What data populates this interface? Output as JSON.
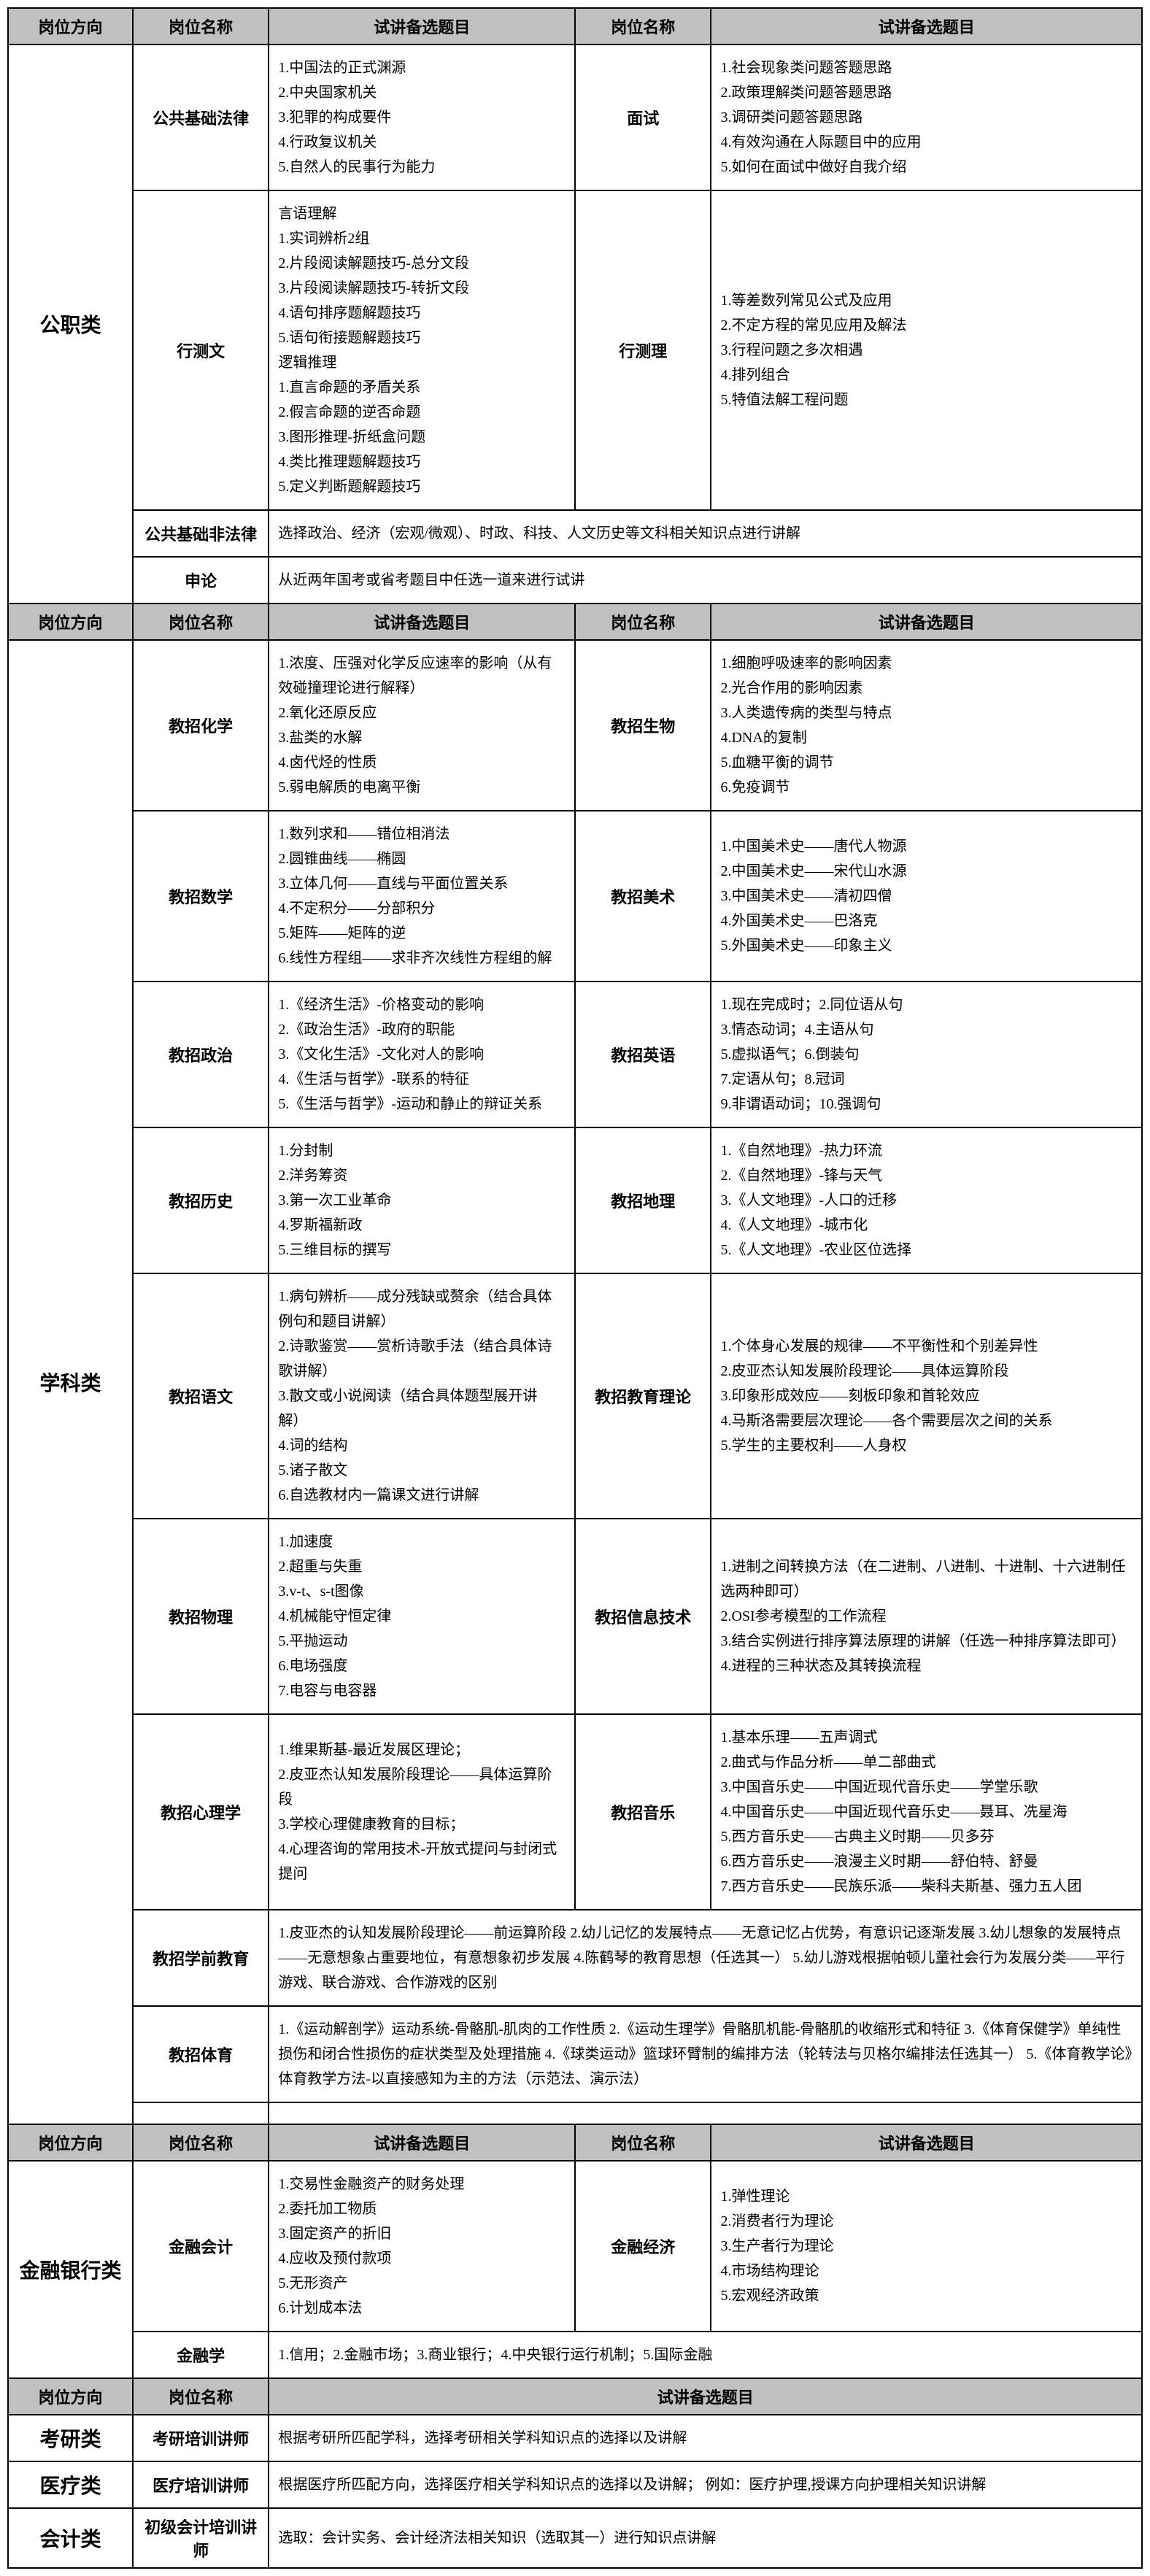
{
  "headers": {
    "direction": "岗位方向",
    "name": "岗位名称",
    "topics": "试讲备选题目"
  },
  "sections": {
    "gongzhi": {
      "direction": "公职类",
      "rows": [
        {
          "name1": "公共基础法律",
          "topics1": "1.中国法的正式渊源\n2.中央国家机关\n3.犯罪的构成要件\n4.行政复议机关\n5.自然人的民事行为能力",
          "name2": "面试",
          "topics2": "1.社会现象类问题答题思路\n2.政策理解类问题答题思路\n3.调研类问题答题思路\n4.有效沟通在人际题目中的应用\n5.如何在面试中做好自我介绍"
        },
        {
          "name1": "行测文",
          "topics1": "言语理解\n1.实词辨析2组\n2.片段阅读解题技巧-总分文段\n3.片段阅读解题技巧-转折文段\n4.语句排序题解题技巧\n5.语句衔接题解题技巧\n逻辑推理\n1.直言命题的矛盾关系\n2.假言命题的逆否命题\n3.图形推理-折纸盒问题\n4.类比推理题解题技巧\n5.定义判断题解题技巧",
          "name2": "行测理",
          "topics2": "1.等差数列常见公式及应用\n2.不定方程的常见应用及解法\n3.行程问题之多次相遇\n4.排列组合\n5.特值法解工程问题"
        },
        {
          "name1": "公共基础非法律",
          "topics_wide": "选择政治、经济（宏观/微观）、时政、科技、人文历史等文科相关知识点进行讲解"
        },
        {
          "name1": "申论",
          "topics_wide": "从近两年国考或省考题目中任选一道来进行试讲"
        }
      ]
    },
    "xueke": {
      "direction": "学科类",
      "rows": [
        {
          "name1": "教招化学",
          "topics1": "1.浓度、压强对化学反应速率的影响（从有效碰撞理论进行解释）\n2.氧化还原反应\n3.盐类的水解\n4.卤代烃的性质\n5.弱电解质的电离平衡",
          "name2": "教招生物",
          "topics2": "1.细胞呼吸速率的影响因素\n2.光合作用的影响因素\n3.人类遗传病的类型与特点\n4.DNA的复制\n5.血糖平衡的调节\n6.免疫调节"
        },
        {
          "name1": "教招数学",
          "topics1": "1.数列求和——错位相消法\n2.圆锥曲线——椭圆\n3.立体几何——直线与平面位置关系\n4.不定积分——分部积分\n5.矩阵——矩阵的逆\n6.线性方程组——求非齐次线性方程组的解",
          "name2": "教招美术",
          "topics2": "1.中国美术史——唐代人物源\n2.中国美术史——宋代山水源\n3.中国美术史——清初四僧\n4.外国美术史——巴洛克\n5.外国美术史——印象主义"
        },
        {
          "name1": "教招政治",
          "topics1": "1.《经济生活》-价格变动的影响\n2.《政治生活》-政府的职能\n3.《文化生活》-文化对人的影响\n4.《生活与哲学》-联系的特征\n5.《生活与哲学》-运动和静止的辩证关系",
          "name2": "教招英语",
          "topics2": "1.现在完成时；2.同位语从句\n3.情态动词；4.主语从句\n5.虚拟语气；6.倒装句\n7.定语从句；8.冠词\n9.非谓语动词；10.强调句"
        },
        {
          "name1": "教招历史",
          "topics1": "1.分封制\n2.洋务筹资\n3.第一次工业革命\n4.罗斯福新政\n5.三维目标的撰写",
          "name2": "教招地理",
          "topics2": "1.《自然地理》-热力环流\n2.《自然地理》-锋与天气\n3.《人文地理》-人口的迁移\n4.《人文地理》-城市化\n5.《人文地理》-农业区位选择"
        },
        {
          "name1": "教招语文",
          "topics1": "1.病句辨析——成分残缺或赘余（结合具体例句和题目讲解）\n2.诗歌鉴赏——赏析诗歌手法（结合具体诗歌讲解）\n3.散文或小说阅读（结合具体题型展开讲解）\n4.词的结构\n5.诸子散文\n6.自选教材内一篇课文进行讲解",
          "name2": "教招教育理论",
          "topics2": "1.个体身心发展的规律——不平衡性和个别差异性\n2.皮亚杰认知发展阶段理论——具体运算阶段\n3.印象形成效应——刻板印象和首轮效应\n4.马斯洛需要层次理论——各个需要层次之间的关系\n5.学生的主要权利——人身权"
        },
        {
          "name1": "教招物理",
          "topics1": "1.加速度\n2.超重与失重\n3.v-t、s-t图像\n4.机械能守恒定律\n5.平抛运动\n6.电场强度\n7.电容与电容器",
          "name2": "教招信息技术",
          "topics2": "1.进制之间转换方法（在二进制、八进制、十进制、十六进制任选两种即可）\n2.OSI参考模型的工作流程\n3.结合实例进行排序算法原理的讲解（任选一种排序算法即可）\n4.进程的三种状态及其转换流程"
        },
        {
          "name1": "教招心理学",
          "topics1": "1.维果斯基-最近发展区理论；\n2.皮亚杰认知发展阶段理论——具体运算阶段\n3.学校心理健康教育的目标；\n4.心理咨询的常用技术-开放式提问与封闭式提问",
          "name2": "教招音乐",
          "topics2": "1.基本乐理——五声调式\n2.曲式与作品分析——单二部曲式\n3.中国音乐史——中国近现代音乐史——学堂乐歌\n4.中国音乐史——中国近现代音乐史——聂耳、冼星海\n5.西方音乐史——古典主义时期——贝多芬\n6.西方音乐史——浪漫主义时期——舒伯特、舒曼\n7.西方音乐史——民族乐派——柴科夫斯基、强力五人团"
        },
        {
          "name1": "教招学前教育",
          "topics_wide": "1.皮亚杰的认知发展阶段理论——前运算阶段\n2.幼儿记忆的发展特点——无意记忆占优势，有意识记逐渐发展\n3.幼儿想象的发展特点——无意想象占重要地位，有意想象初步发展\n4.陈鹤琴的教育思想（任选其一）\n5.幼儿游戏根据帕顿儿童社会行为发展分类——平行游戏、联合游戏、合作游戏的区别"
        },
        {
          "name1": "教招体育",
          "topics_wide": "1.《运动解剖学》运动系统-骨骼肌-肌肉的工作性质\n2.《运动生理学》骨骼肌机能-骨骼肌的收缩形式和特征\n3.《体育保健学》单纯性损伤和闭合性损伤的症状类型及处理措施\n4.《球类运动》篮球环臂制的编排方法（轮转法与贝格尔编排法任选其一）\n5.《体育教学论》体育教学方法-以直接感知为主的方法（示范法、演示法）"
        }
      ]
    },
    "jinrong": {
      "direction": "金融银行类",
      "rows": [
        {
          "name1": "金融会计",
          "topics1": "1.交易性金融资产的财务处理\n2.委托加工物质\n3.固定资产的折旧\n4.应收及预付款项\n5.无形资产\n6.计划成本法",
          "name2": "金融经济",
          "topics2": "1.弹性理论\n2.消费者行为理论\n3.生产者行为理论\n4.市场结构理论\n5.宏观经济政策"
        },
        {
          "name1": "金融学",
          "topics_wide": "1.信用；2.金融市场；3.商业银行；4.中央银行运行机制；5.国际金融"
        }
      ]
    },
    "kaoyan": {
      "direction": "考研类",
      "name": "考研培训讲师",
      "topics": "根据考研所匹配学科，选择考研相关学科知识点的选择以及讲解"
    },
    "yiliao": {
      "direction": "医疗类",
      "name": "医疗培训讲师",
      "topics": "根据医疗所匹配方向，选择医疗相关学科知识点的选择以及讲解；\n例如：医疗护理,授课方向护理相关知识讲解"
    },
    "kuaiji": {
      "direction": "会计类",
      "name": "初级会计培训讲师",
      "topics": "选取：会计实务、会计经济法相关知识（选取其一）进行知识点讲解"
    }
  }
}
